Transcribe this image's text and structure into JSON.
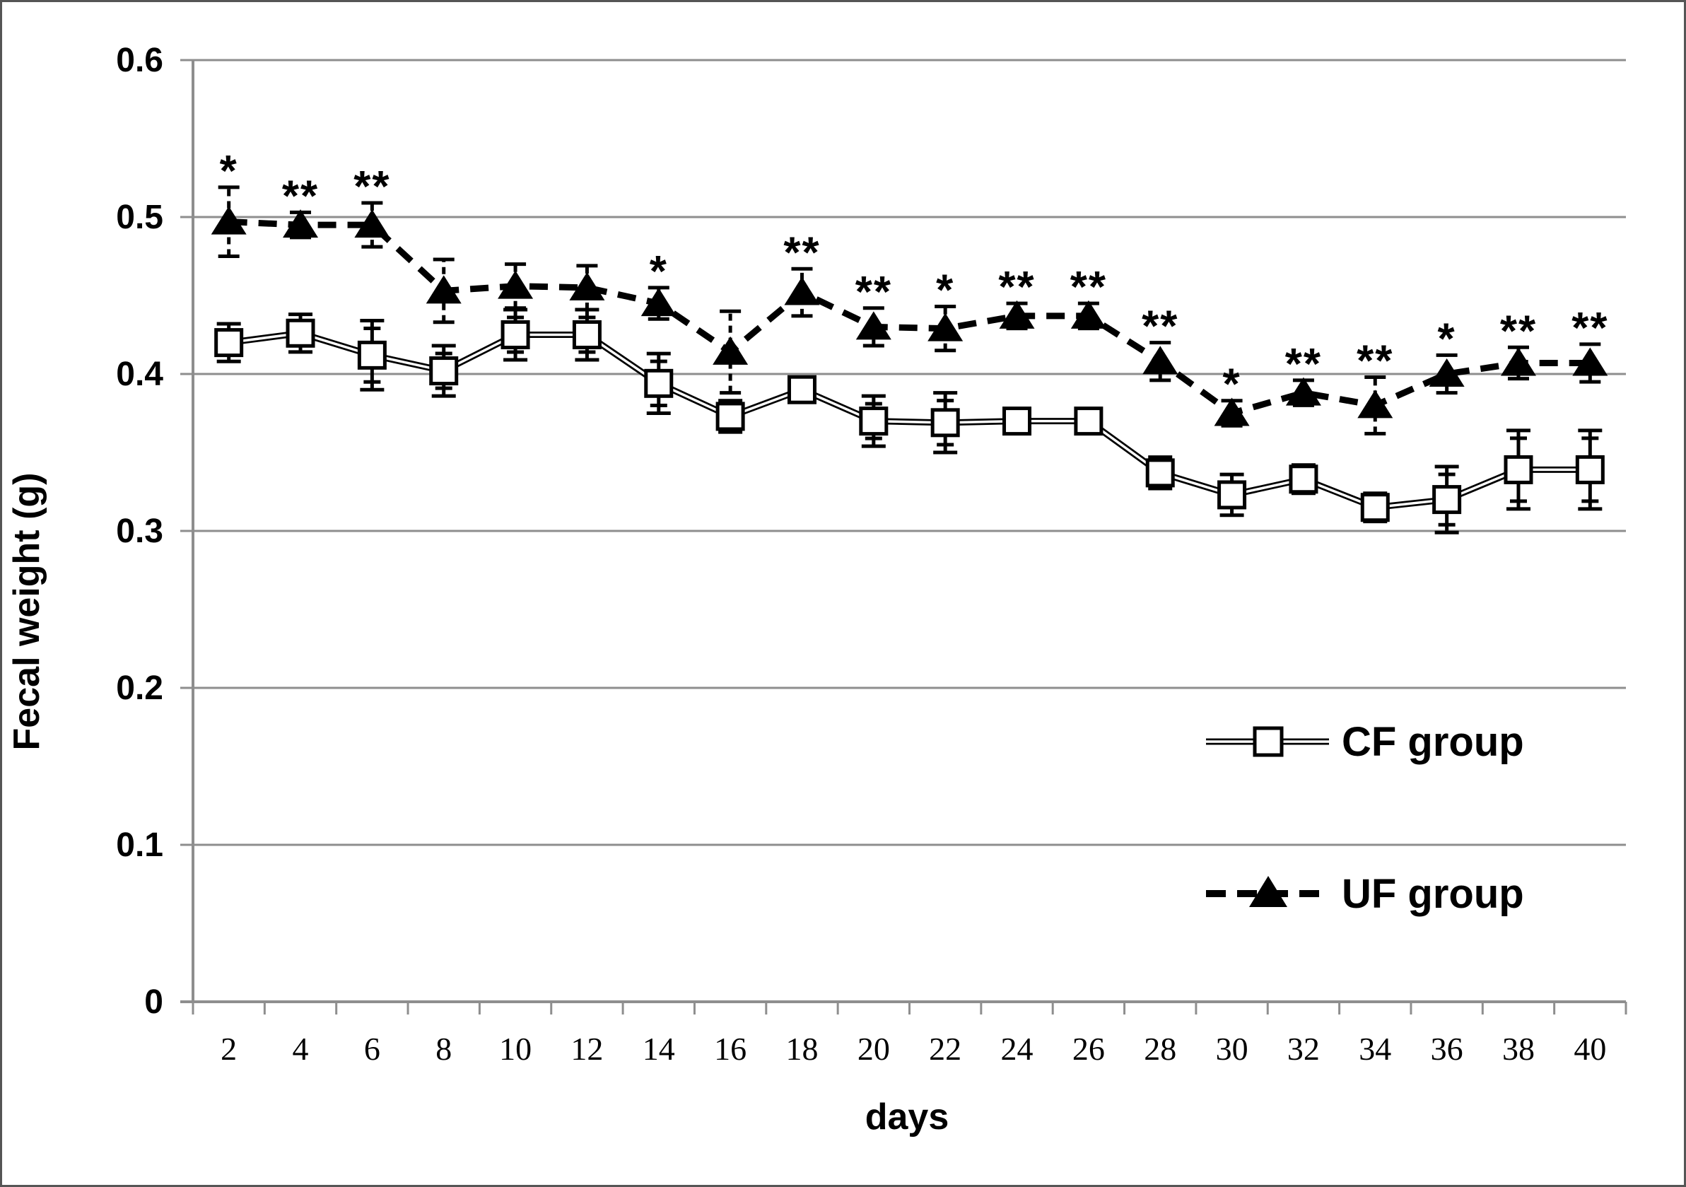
{
  "chart_data": {
    "type": "line",
    "title": "",
    "xlabel": "days",
    "ylabel": "Fecal weight (g)",
    "x": [
      2,
      4,
      6,
      8,
      10,
      12,
      14,
      16,
      18,
      20,
      22,
      24,
      26,
      28,
      30,
      32,
      34,
      36,
      38,
      40
    ],
    "xtick_labels": [
      "2",
      "4",
      "6",
      "8",
      "10",
      "12",
      "14",
      "16",
      "18",
      "20",
      "22",
      "24",
      "26",
      "28",
      "30",
      "32",
      "34",
      "36",
      "38",
      "40"
    ],
    "ylim": [
      0,
      0.6
    ],
    "yticks": [
      0,
      0.1,
      0.2,
      0.3,
      0.4,
      0.5,
      0.6
    ],
    "ytick_labels": [
      "0",
      "0.1",
      "0.2",
      "0.3",
      "0.4",
      "0.5",
      "0.6"
    ],
    "grid": "horizontal",
    "legend_position": "inside-right",
    "series": [
      {
        "name": "CF group",
        "marker": "open-square",
        "line_style": "double",
        "values": [
          0.42,
          0.426,
          0.412,
          0.402,
          0.425,
          0.425,
          0.394,
          0.373,
          0.39,
          0.37,
          0.369,
          0.37,
          0.37,
          0.337,
          0.323,
          0.333,
          0.315,
          0.32,
          0.339,
          0.339
        ],
        "errors": [
          0.012,
          0.012,
          0.022,
          0.016,
          0.016,
          0.016,
          0.019,
          0.01,
          0.008,
          0.016,
          0.019,
          0.006,
          0.006,
          0.01,
          0.013,
          0.009,
          0.009,
          0.021,
          0.025,
          0.025
        ]
      },
      {
        "name": "UF group",
        "marker": "filled-triangle",
        "line_style": "dashed",
        "values": [
          0.497,
          0.495,
          0.495,
          0.453,
          0.456,
          0.455,
          0.445,
          0.414,
          0.452,
          0.43,
          0.429,
          0.437,
          0.437,
          0.408,
          0.375,
          0.388,
          0.38,
          0.4,
          0.407,
          0.407
        ],
        "errors": [
          0.022,
          0.008,
          0.014,
          0.02,
          0.014,
          0.014,
          0.01,
          0.026,
          0.015,
          0.012,
          0.014,
          0.008,
          0.008,
          0.012,
          0.008,
          0.008,
          0.018,
          0.012,
          0.01,
          0.012
        ],
        "significance": [
          "*",
          "**",
          "**",
          "",
          "",
          "",
          "*",
          "",
          "**",
          "**",
          "*",
          "**",
          "**",
          "**",
          "*",
          "**",
          "**",
          "*",
          "**",
          "**"
        ]
      }
    ]
  },
  "styles": {
    "background": "#ffffff",
    "border_color": "#555555",
    "grid_color": "#8e8e8e",
    "axis_color": "#8e8e8e",
    "series_color": "#000000",
    "marker_fill": "#ffffff"
  }
}
